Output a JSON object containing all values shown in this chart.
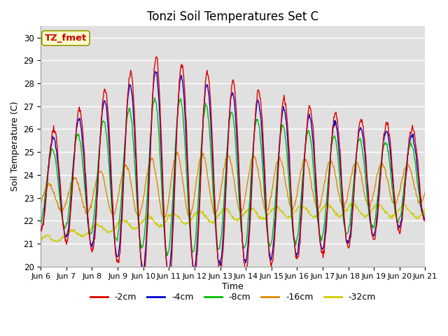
{
  "title": "Tonzi Soil Temperatures Set C",
  "xlabel": "Time",
  "ylabel": "Soil Temperature (C)",
  "ylim": [
    20.0,
    30.5
  ],
  "yticks": [
    20.0,
    21.0,
    22.0,
    23.0,
    24.0,
    25.0,
    26.0,
    27.0,
    28.0,
    29.0,
    30.0
  ],
  "xtick_labels": [
    "Jun 6",
    "Jun 7",
    "Jun 8",
    "Jun 9",
    "Jun 10",
    "Jun 11",
    "Jun 12",
    "Jun 13",
    "Jun 14",
    "Jun 15",
    "Jun 16",
    "Jun 17",
    "Jun 18",
    "Jun 19",
    "Jun 20",
    "Jun 21"
  ],
  "legend_labels": [
    "-2cm",
    "-4cm",
    "-8cm",
    "-16cm",
    "-32cm"
  ],
  "line_colors": [
    "#dd0000",
    "#0000cc",
    "#00bb00",
    "#dd8800",
    "#cccc00"
  ],
  "annotation_text": "TZ_fmet",
  "annotation_color": "#cc0000",
  "annotation_bg": "#ffffcc",
  "bg_color": "#e8e8e8",
  "title_fontsize": 12,
  "label_fontsize": 9,
  "tick_fontsize": 8.5
}
